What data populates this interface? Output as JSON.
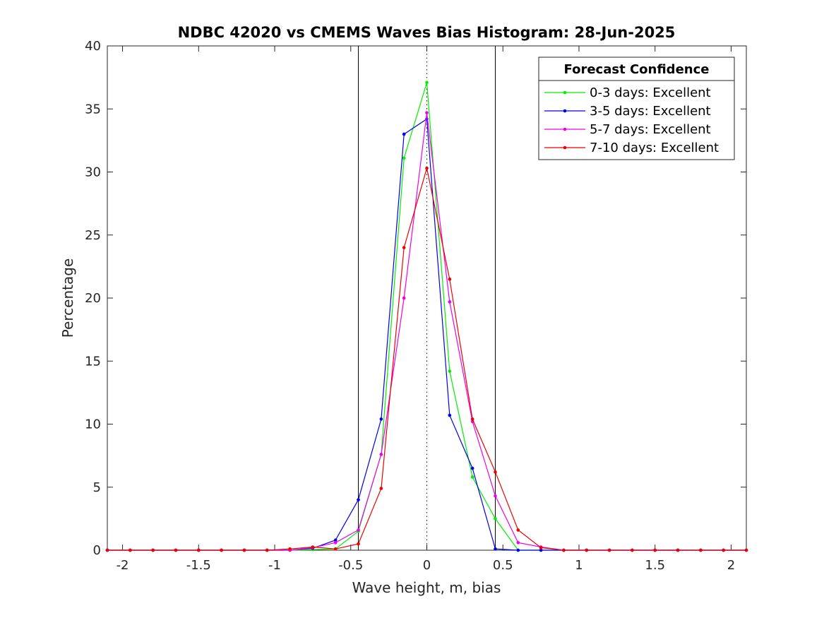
{
  "chart_data": {
    "type": "line",
    "title": "NDBC 42020 vs CMEMS Waves Bias Histogram: 28-Jun-2025",
    "xlabel": "Wave height, m, bias",
    "ylabel": "Percentage",
    "xlim": [
      -2.1,
      2.1
    ],
    "ylim": [
      0,
      40
    ],
    "xticks": [
      -2,
      -1.5,
      -1,
      -0.5,
      0,
      0.5,
      1,
      1.5,
      2
    ],
    "xtick_labels": [
      "-2",
      "-1.5",
      "-1",
      "-0.5",
      "0",
      "0.5",
      "1",
      "1.5",
      "2"
    ],
    "yticks": [
      0,
      5,
      10,
      15,
      20,
      25,
      30,
      35,
      40
    ],
    "ytick_labels": [
      "0",
      "5",
      "10",
      "15",
      "20",
      "25",
      "30",
      "35",
      "40"
    ],
    "grid": false,
    "reference_lines": {
      "solid_x": [
        -0.45,
        0.45
      ],
      "dotted_x": [
        0
      ]
    },
    "legend": {
      "title": "Forecast Confidence",
      "placement": "top-right"
    },
    "x": [
      -2.1,
      -1.95,
      -1.8,
      -1.65,
      -1.5,
      -1.35,
      -1.2,
      -1.05,
      -0.9,
      -0.75,
      -0.6,
      -0.45,
      -0.3,
      -0.15,
      0,
      0.15,
      0.3,
      0.45,
      0.6,
      0.75,
      0.9,
      1.05,
      1.2,
      1.35,
      1.5,
      1.65,
      1.8,
      1.95,
      2.1
    ],
    "series": [
      {
        "name": "0-3 days: Excellent",
        "color": "#00ee00",
        "values": [
          0,
          0,
          0,
          0,
          0,
          0,
          0,
          0,
          0,
          0.05,
          0.1,
          1.5,
          7.6,
          31.1,
          37.1,
          14.2,
          5.8,
          2.5,
          0,
          0,
          0,
          0,
          0,
          0,
          0,
          0,
          0,
          0,
          0
        ]
      },
      {
        "name": "3-5 days: Excellent",
        "color": "#0000ee",
        "values": [
          0,
          0,
          0,
          0,
          0,
          0,
          0,
          0,
          0,
          0.15,
          0.8,
          4.0,
          10.4,
          33.0,
          34.2,
          10.7,
          6.5,
          0.1,
          0,
          0,
          0,
          0,
          0,
          0,
          0,
          0,
          0,
          0,
          0
        ]
      },
      {
        "name": "5-7 days: Excellent",
        "color": "#ee00ee",
        "values": [
          0,
          0,
          0,
          0,
          0,
          0,
          0,
          0,
          0,
          0.2,
          0.6,
          1.6,
          7.6,
          20.0,
          34.7,
          19.7,
          10.2,
          4.3,
          0.6,
          0.25,
          0,
          0,
          0,
          0,
          0,
          0,
          0,
          0,
          0
        ]
      },
      {
        "name": "7-10 days: Excellent",
        "color": "#ee0000",
        "values": [
          0,
          0,
          0,
          0,
          0,
          0,
          0,
          0,
          0.1,
          0.25,
          0.1,
          0.5,
          4.9,
          24.0,
          30.3,
          21.5,
          10.4,
          6.2,
          1.6,
          0.2,
          0,
          0,
          0,
          0,
          0,
          0,
          0,
          0,
          0
        ]
      }
    ]
  }
}
